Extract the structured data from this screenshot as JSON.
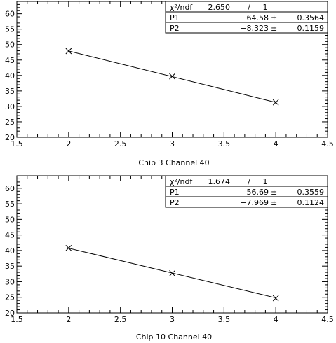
{
  "chart_data": [
    {
      "type": "scatter",
      "title": "Chip 3 Channel 40",
      "xlim": [
        1.5,
        4.5
      ],
      "ylim": [
        20,
        64
      ],
      "xticks": [
        "1.5",
        "2",
        "2.5",
        "3",
        "3.5",
        "4",
        "4.5"
      ],
      "yticks": [
        "20",
        "25",
        "30",
        "35",
        "40",
        "45",
        "50",
        "55",
        "60"
      ],
      "grid": false,
      "points": [
        {
          "x": 2,
          "y": 47.9
        },
        {
          "x": 3,
          "y": 39.7
        },
        {
          "x": 4,
          "y": 31.3
        }
      ],
      "fit": {
        "intercept": 64.58,
        "slope": -8.323
      },
      "stats": {
        "chi2_label": "χ²/ndf",
        "chi2_value": "2.650",
        "sep": "/",
        "ndf": "1",
        "rows": [
          {
            "name": "P1",
            "value": "64.58",
            "pm": "±",
            "error": "0.3564"
          },
          {
            "name": "P2",
            "value": "−8.323",
            "pm": "±",
            "error": "0.1159"
          }
        ]
      }
    },
    {
      "type": "scatter",
      "title": "Chip 10 Channel 40",
      "xlim": [
        1.5,
        4.5
      ],
      "ylim": [
        20,
        64
      ],
      "xticks": [
        "1.5",
        "2",
        "2.5",
        "3",
        "3.5",
        "4",
        "4.5"
      ],
      "yticks": [
        "20",
        "25",
        "30",
        "35",
        "40",
        "45",
        "50",
        "55",
        "60"
      ],
      "grid": false,
      "points": [
        {
          "x": 2,
          "y": 40.8
        },
        {
          "x": 3,
          "y": 32.7
        },
        {
          "x": 4,
          "y": 24.7
        }
      ],
      "fit": {
        "intercept": 56.69,
        "slope": -7.969
      },
      "stats": {
        "chi2_label": "χ²/ndf",
        "chi2_value": "1.674",
        "sep": "/",
        "ndf": "1",
        "rows": [
          {
            "name": "P1",
            "value": "56.69",
            "pm": "±",
            "error": "0.3559"
          },
          {
            "name": "P2",
            "value": "−7.969",
            "pm": "±",
            "error": "0.1124"
          }
        ]
      }
    }
  ]
}
